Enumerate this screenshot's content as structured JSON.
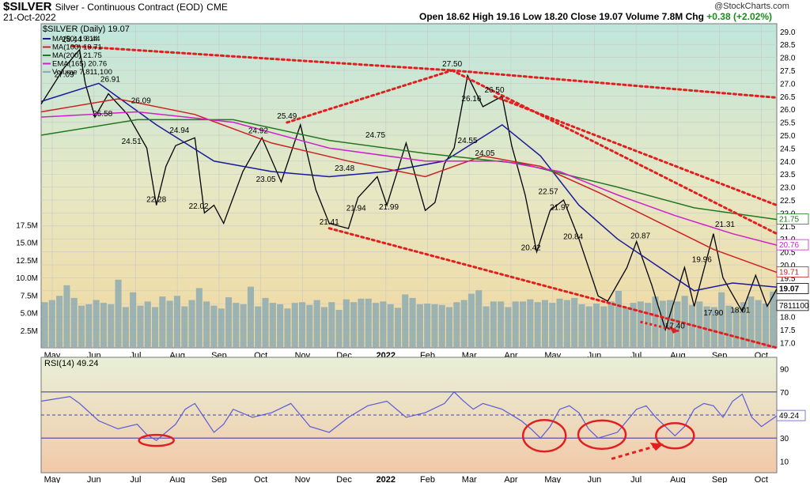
{
  "header": {
    "symbol": "$SILVER",
    "name": "Silver - Continuous Contract (EOD)",
    "exchange": "CME",
    "date": "21-Oct-2022",
    "ohlc": "Open 18.62  High 19.16  Low 18.20  Close 19.07  Volume 7.8M  Chg",
    "chg": "+0.38 (+2.02%)",
    "brand": "@StockCharts.com"
  },
  "colors": {
    "ma50": "#1a1a99",
    "ma100": "#cc2222",
    "ma200": "#227722",
    "ema165": "#cc22cc",
    "volume": "#8eacb3",
    "price": "#000000",
    "annotation": "#e02020",
    "rsi": "#5a5ad8"
  },
  "chart_data": [
    {
      "type": "line",
      "title": "$SILVER (Daily) 19.07",
      "legend": [
        {
          "label": "MA(50) 19.14",
          "color": "#1a1a99"
        },
        {
          "label": "MA(100) 19.71",
          "color": "#cc2222"
        },
        {
          "label": "MA(200) 21.75",
          "color": "#227722"
        },
        {
          "label": "EMA(165) 20.76",
          "color": "#cc22cc"
        },
        {
          "label": "Volume 7,811,100",
          "color": "#8eacb3"
        }
      ],
      "stray_label": "8.44",
      "legend_placement": "top-left",
      "x_ticks": [
        "May",
        "Jun",
        "Jul",
        "Aug",
        "Sep",
        "Oct",
        "Nov",
        "Dec",
        "2022",
        "Feb",
        "Mar",
        "Apr",
        "May",
        "Jun",
        "Jul",
        "Aug",
        "Sep",
        "Oct"
      ],
      "ylim": [
        16.8,
        29.3
      ],
      "y_ticks": [
        "29.0",
        "28.5",
        "28.0",
        "27.5",
        "27.0",
        "26.5",
        "26.0",
        "25.5",
        "25.0",
        "24.5",
        "24.0",
        "23.5",
        "23.0",
        "22.5",
        "22.0",
        "21.5",
        "21.0",
        "20.5",
        "20.0",
        "19.5",
        "19.0",
        "18.5",
        "18.0",
        "17.5",
        "17.0"
      ],
      "series": [
        {
          "name": "$SILVER",
          "x": [
            0,
            12,
            20,
            23,
            28,
            35,
            45,
            55,
            60,
            65,
            70,
            80,
            85,
            90,
            95,
            105,
            115,
            125,
            135,
            143,
            150,
            160,
            165,
            175,
            180,
            190,
            200,
            205,
            210,
            215,
            222,
            230,
            240,
            245,
            252,
            258,
            265,
            272,
            280,
            290,
            295,
            305,
            310,
            318,
            325,
            335,
            340,
            350,
            355,
            365,
            372,
            378,
            383
          ],
          "values": [
            26.2,
            27.6,
            28.3,
            27.0,
            25.7,
            26.6,
            25.8,
            24.5,
            22.3,
            23.8,
            24.6,
            24.9,
            22.0,
            22.3,
            21.6,
            23.6,
            24.9,
            23.2,
            25.4,
            22.9,
            21.6,
            21.4,
            22.6,
            23.4,
            22.3,
            24.7,
            22.1,
            22.4,
            23.9,
            24.5,
            27.3,
            26.1,
            26.5,
            24.6,
            22.7,
            20.5,
            22.1,
            22.5,
            21.0,
            18.8,
            18.6,
            19.9,
            20.9,
            19.2,
            17.5,
            19.9,
            18.4,
            21.2,
            19.5,
            18.2,
            19.6,
            18.4,
            19.07
          ]
        },
        {
          "name": "MA(50)",
          "x": [
            0,
            30,
            60,
            90,
            120,
            150,
            180,
            210,
            240,
            260,
            280,
            300,
            320,
            340,
            360,
            383
          ],
          "values": [
            26.3,
            27.0,
            25.4,
            24.0,
            23.6,
            23.4,
            23.6,
            24.0,
            25.4,
            24.2,
            22.3,
            21.0,
            20.0,
            19.0,
            19.3,
            19.14
          ]
        },
        {
          "name": "MA(100)",
          "x": [
            0,
            40,
            80,
            120,
            160,
            200,
            230,
            260,
            290,
            320,
            350,
            383
          ],
          "values": [
            25.9,
            26.4,
            25.8,
            24.7,
            24.0,
            23.4,
            24.2,
            23.8,
            22.8,
            21.7,
            20.6,
            19.71
          ]
        },
        {
          "name": "MA(200)",
          "x": [
            0,
            50,
            100,
            150,
            200,
            250,
            300,
            340,
            383
          ],
          "values": [
            25.0,
            25.6,
            25.6,
            24.8,
            24.3,
            23.9,
            23.0,
            22.2,
            21.75
          ]
        },
        {
          "name": "EMA(165)",
          "x": [
            0,
            50,
            100,
            150,
            200,
            240,
            270,
            300,
            330,
            360,
            383
          ],
          "values": [
            25.7,
            25.9,
            25.5,
            24.5,
            24.0,
            24.0,
            23.6,
            22.7,
            21.9,
            21.2,
            20.76
          ]
        },
        {
          "name": "Volume",
          "unit": "M",
          "y_ticks": [
            "17.5M",
            "15.0M",
            "12.5M",
            "10.0M",
            "7.5M",
            "5.0M",
            "2.5M"
          ],
          "ylim": [
            0,
            18
          ],
          "values": [
            6.5,
            6.8,
            7.4,
            8.9,
            7.1,
            6.0,
            6.2,
            6.8,
            6.4,
            6.2,
            9.7,
            5.8,
            7.9,
            6.0,
            6.6,
            5.8,
            7.3,
            6.7,
            7.4,
            5.9,
            6.8,
            8.5,
            6.6,
            6.0,
            5.6,
            7.2,
            6.4,
            6.2,
            8.7,
            5.9,
            7.1,
            6.4,
            6.2,
            5.6,
            6.4,
            6.5,
            6.1,
            6.8,
            5.8,
            6.5,
            5.4,
            6.9,
            6.5,
            7.0,
            7.0,
            6.4,
            6.6,
            6.2,
            5.7,
            7.6,
            7.1,
            6.2,
            6.3,
            6.2,
            6.1,
            5.8,
            6.5,
            6.8,
            7.7,
            8.2,
            5.9,
            6.6,
            6.6,
            5.8,
            6.6,
            6.6,
            6.9,
            6.5,
            6.8,
            6.4,
            7.0,
            6.8,
            7.1,
            6.2,
            5.9,
            6.3,
            5.9,
            6.6,
            8.1,
            5.8,
            6.4,
            6.6,
            6.4,
            7.3,
            6.7,
            6.8,
            6.6,
            7.4,
            6.1,
            6.6,
            5.9,
            5.8,
            7.9,
            6.0,
            5.6,
            6.5,
            7.3,
            6.8,
            6.3,
            8.0
          ]
        }
      ],
      "annotations": [
        {
          "text": "28.44",
          "x": 16,
          "y": 28.44
        },
        {
          "text": "27.09",
          "x": 12,
          "y": 27.09
        },
        {
          "text": "26.91",
          "x": 36,
          "y": 26.91
        },
        {
          "text": "25.58",
          "x": 32,
          "y": 25.58
        },
        {
          "text": "26.09",
          "x": 52,
          "y": 26.09
        },
        {
          "text": "24.51",
          "x": 47,
          "y": 24.51
        },
        {
          "text": "24.94",
          "x": 72,
          "y": 24.94
        },
        {
          "text": "22.28",
          "x": 60,
          "y": 22.28
        },
        {
          "text": "22.02",
          "x": 82,
          "y": 22.02
        },
        {
          "text": "24.92",
          "x": 113,
          "y": 24.92
        },
        {
          "text": "25.49",
          "x": 128,
          "y": 25.49
        },
        {
          "text": "23.05",
          "x": 117,
          "y": 23.05
        },
        {
          "text": "23.48",
          "x": 158,
          "y": 23.48
        },
        {
          "text": "21.41",
          "x": 150,
          "y": 21.41
        },
        {
          "text": "24.75",
          "x": 174,
          "y": 24.75
        },
        {
          "text": "21.94",
          "x": 164,
          "y": 21.94
        },
        {
          "text": "21.99",
          "x": 181,
          "y": 21.99
        },
        {
          "text": "27.50",
          "x": 214,
          "y": 27.5
        },
        {
          "text": "26.16",
          "x": 224,
          "y": 26.16
        },
        {
          "text": "26.50",
          "x": 236,
          "y": 26.5
        },
        {
          "text": "24.55",
          "x": 222,
          "y": 24.55
        },
        {
          "text": "24.05",
          "x": 231,
          "y": 24.05
        },
        {
          "text": "22.57",
          "x": 264,
          "y": 22.57
        },
        {
          "text": "21.97",
          "x": 270,
          "y": 21.97
        },
        {
          "text": "20.42",
          "x": 255,
          "y": 20.42
        },
        {
          "text": "20.84",
          "x": 277,
          "y": 20.84
        },
        {
          "text": "20.87",
          "x": 312,
          "y": 20.87
        },
        {
          "text": "17.40",
          "x": 330,
          "y": 17.4
        },
        {
          "text": "19.96",
          "x": 344,
          "y": 19.96
        },
        {
          "text": "21.31",
          "x": 356,
          "y": 21.31
        },
        {
          "text": "17.90",
          "x": 350,
          "y": 17.9
        },
        {
          "text": "18.01",
          "x": 364,
          "y": 18.01
        }
      ],
      "right_labels": [
        {
          "text": "21.75",
          "color": "#227722"
        },
        {
          "text": "20.76",
          "color": "#cc22cc"
        },
        {
          "text": "19.71",
          "color": "#cc2222"
        },
        {
          "text": "19.07",
          "color": "#000000"
        },
        {
          "text": "7811100",
          "color": "#000000"
        }
      ],
      "grid": true
    },
    {
      "type": "line",
      "title": "RSI(14) 49.24",
      "ylim": [
        0,
        100
      ],
      "y_ticks": [
        "90",
        "70",
        "50",
        "30",
        "10"
      ],
      "series": [
        {
          "name": "RSI(14)",
          "x": [
            0,
            15,
            20,
            30,
            40,
            50,
            55,
            60,
            70,
            75,
            80,
            90,
            95,
            100,
            110,
            120,
            130,
            140,
            150,
            160,
            170,
            180,
            190,
            200,
            210,
            215,
            220,
            225,
            230,
            240,
            250,
            255,
            260,
            265,
            270,
            275,
            280,
            285,
            290,
            300,
            310,
            315,
            320,
            325,
            330,
            335,
            340,
            345,
            350,
            355,
            360,
            365,
            370,
            375,
            383
          ],
          "values": [
            62,
            66,
            60,
            45,
            38,
            42,
            33,
            28,
            42,
            55,
            60,
            35,
            42,
            55,
            48,
            52,
            60,
            40,
            35,
            48,
            58,
            62,
            48,
            52,
            60,
            70,
            62,
            55,
            60,
            55,
            45,
            38,
            30,
            40,
            55,
            58,
            52,
            38,
            30,
            35,
            55,
            58,
            48,
            40,
            32,
            40,
            55,
            60,
            58,
            48,
            62,
            68,
            48,
            40,
            49.24
          ]
        }
      ],
      "right_labels": [
        {
          "text": "49.24"
        }
      ]
    }
  ]
}
